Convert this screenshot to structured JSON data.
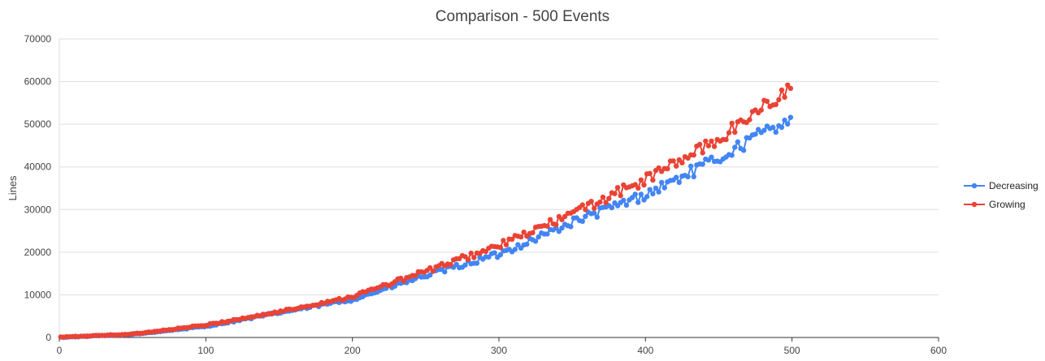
{
  "chart_data": {
    "type": "line",
    "title": "Comparison - 500 Events",
    "xlabel": "",
    "ylabel": "Lines",
    "xlim": [
      0,
      600
    ],
    "ylim": [
      0,
      70000
    ],
    "x_ticks": [
      0,
      100,
      200,
      300,
      400,
      500,
      600
    ],
    "y_ticks": [
      0,
      10000,
      20000,
      30000,
      40000,
      50000,
      60000,
      70000
    ],
    "x_tick_labels": [
      "0",
      "100",
      "200",
      "300",
      "400",
      "500",
      "600"
    ],
    "y_tick_labels": [
      "0",
      "10000",
      "20000",
      "30000",
      "40000",
      "50000",
      "60000",
      "70000"
    ],
    "grid": true,
    "legend_position": "right",
    "x_range": [
      1,
      500
    ],
    "series": [
      {
        "name": "Decreasing",
        "color": "#4285f4",
        "marker": "circle",
        "anchors": [
          [
            1,
            50
          ],
          [
            50,
            700
          ],
          [
            100,
            2600
          ],
          [
            150,
            5800
          ],
          [
            200,
            8900
          ],
          [
            250,
            14500
          ],
          [
            300,
            19500
          ],
          [
            350,
            27000
          ],
          [
            400,
            33500
          ],
          [
            450,
            42000
          ],
          [
            500,
            52000
          ]
        ]
      },
      {
        "name": "Growing",
        "color": "#ea4335",
        "marker": "circle",
        "anchors": [
          [
            1,
            80
          ],
          [
            50,
            800
          ],
          [
            100,
            2900
          ],
          [
            150,
            6000
          ],
          [
            200,
            9600
          ],
          [
            250,
            15500
          ],
          [
            300,
            21500
          ],
          [
            350,
            29000
          ],
          [
            400,
            37000
          ],
          [
            450,
            46500
          ],
          [
            500,
            59000
          ]
        ]
      }
    ]
  }
}
